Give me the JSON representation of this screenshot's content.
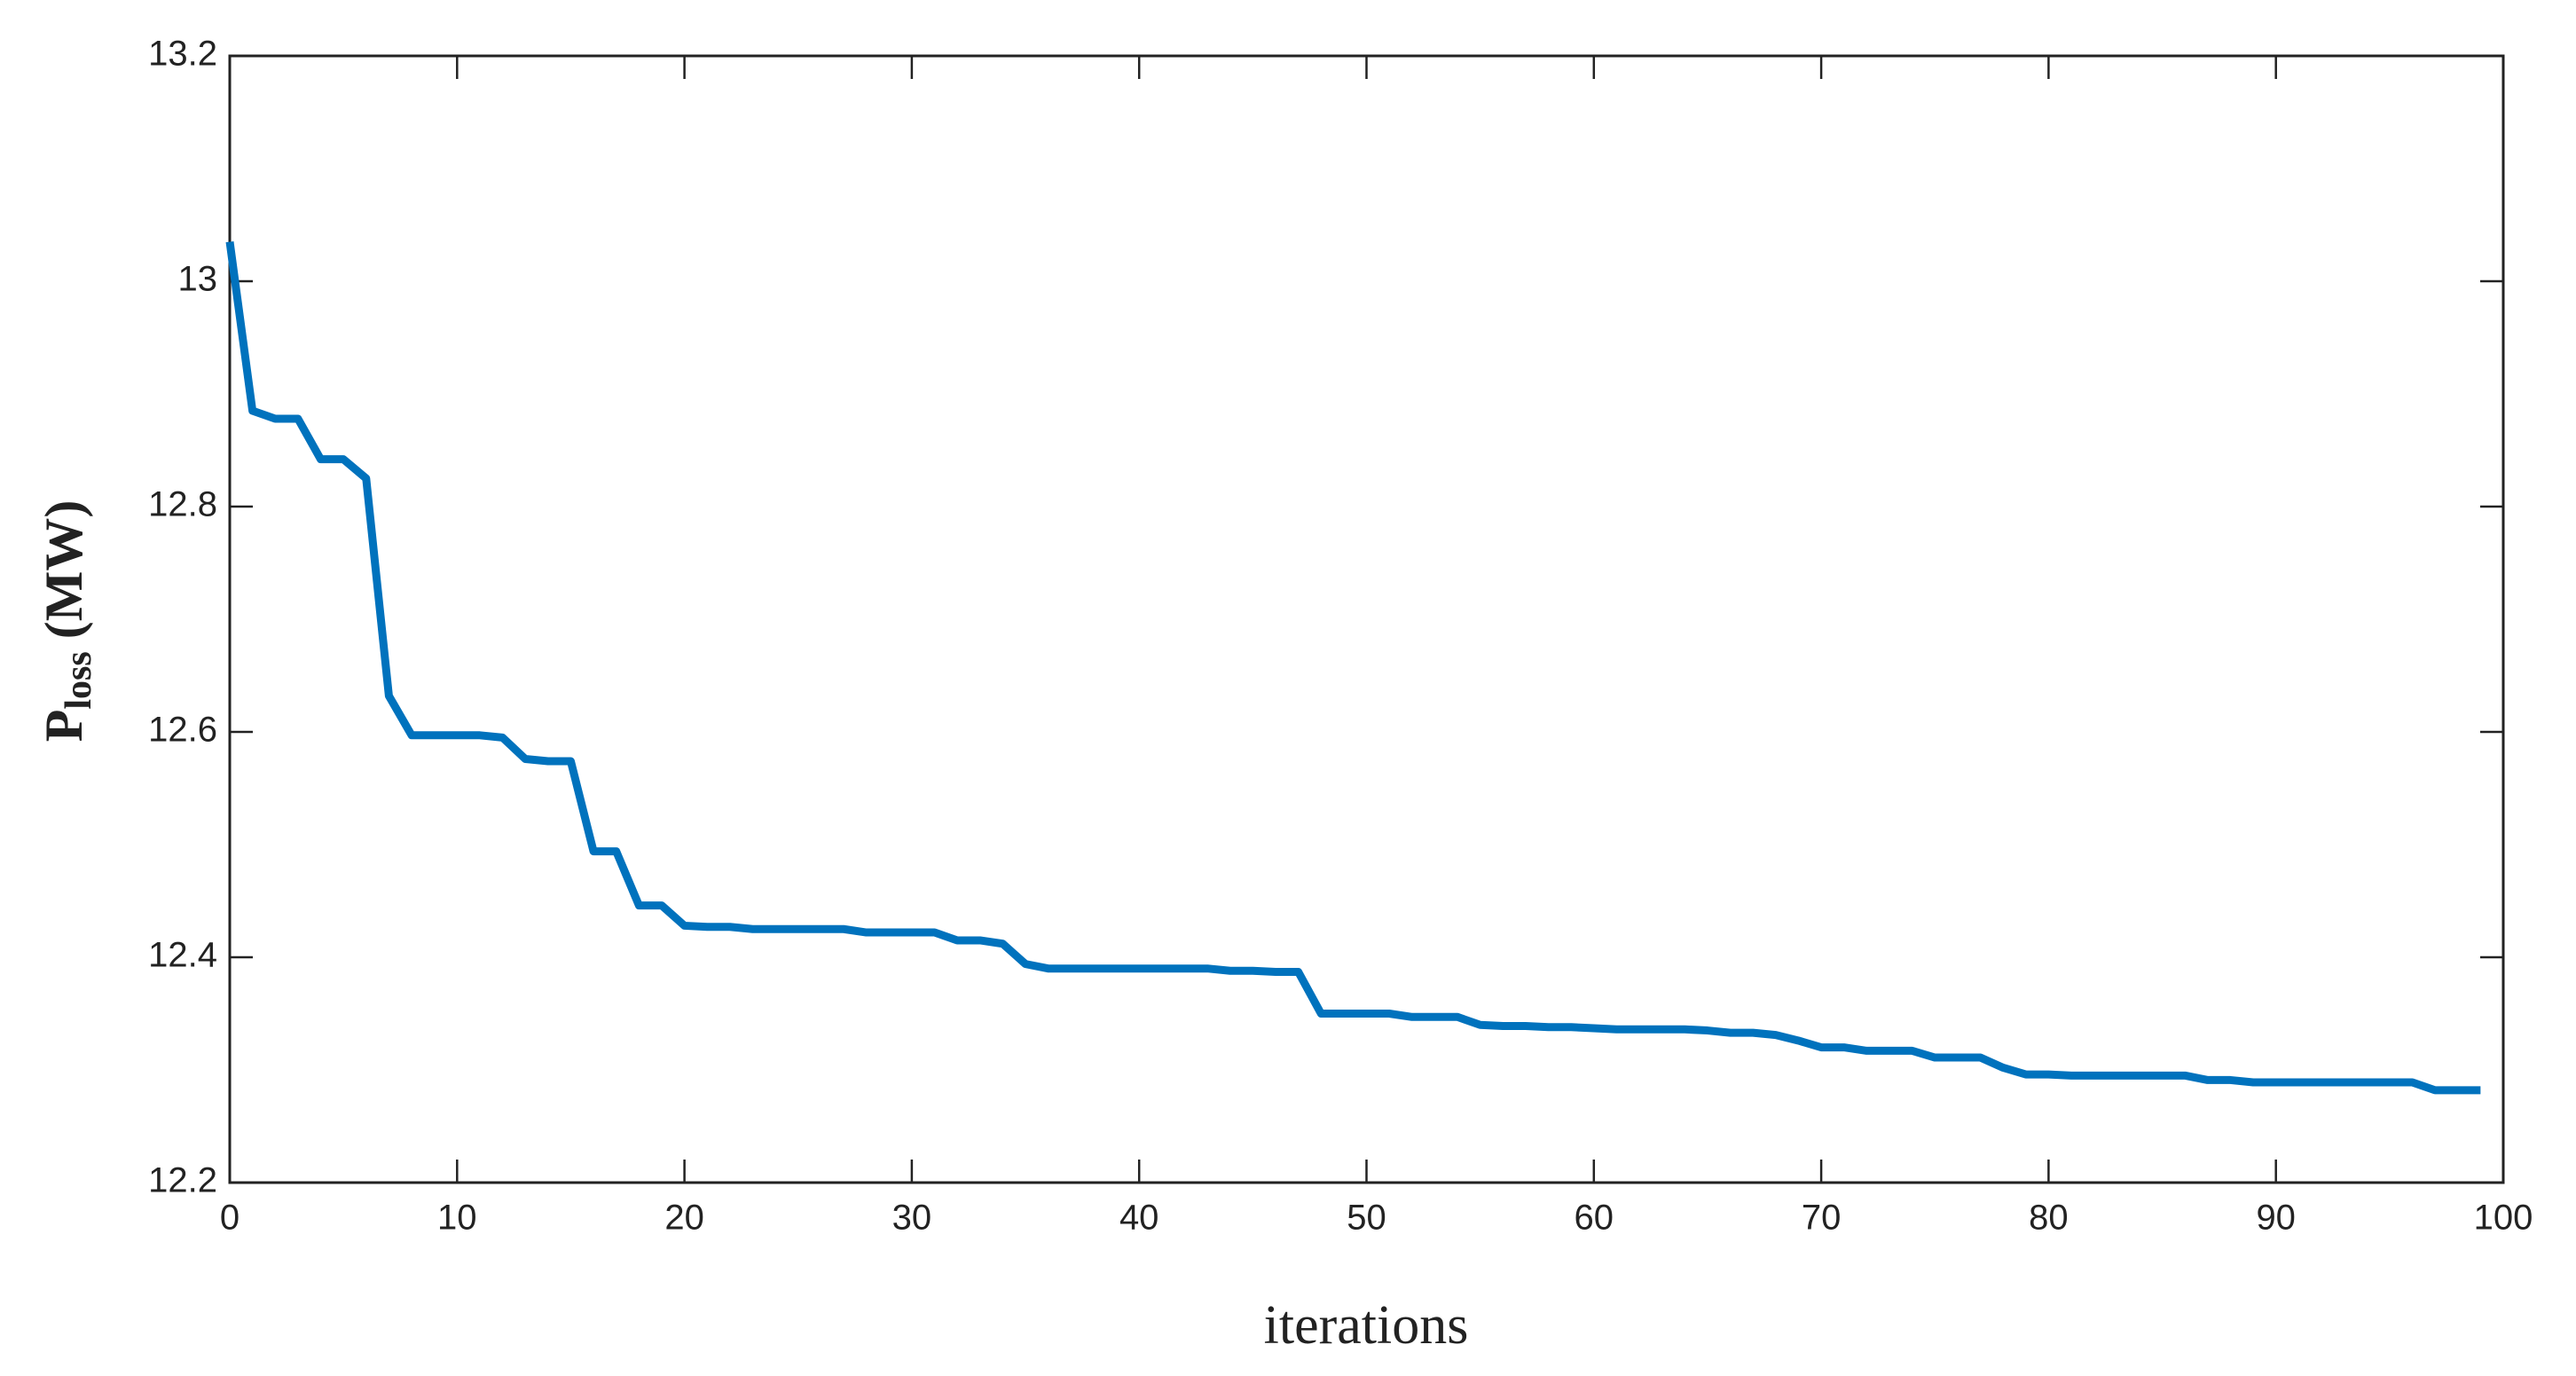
{
  "chart_data": {
    "type": "line",
    "xlabel": "iterations",
    "ylabel": "P",
    "ylabel_subscript": "loss",
    "ylabel_unit": "(MW)",
    "x": [
      0,
      1,
      2,
      3,
      4,
      5,
      6,
      7,
      8,
      9,
      10,
      11,
      12,
      13,
      14,
      15,
      16,
      17,
      18,
      19,
      20,
      21,
      22,
      23,
      24,
      25,
      26,
      27,
      28,
      29,
      30,
      31,
      32,
      33,
      34,
      35,
      36,
      37,
      38,
      39,
      40,
      41,
      42,
      43,
      44,
      45,
      46,
      47,
      48,
      49,
      50,
      51,
      52,
      53,
      54,
      55,
      56,
      57,
      58,
      59,
      60,
      61,
      62,
      63,
      64,
      65,
      66,
      67,
      68,
      69,
      70,
      71,
      72,
      73,
      74,
      75,
      76,
      77,
      78,
      79,
      80,
      81,
      82,
      83,
      84,
      85,
      86,
      87,
      88,
      89,
      90,
      91,
      92,
      93,
      94,
      95,
      96,
      97,
      98,
      99
    ],
    "series": [
      {
        "color": "#0072bd",
        "values": [
          13.035,
          12.885,
          12.878,
          12.878,
          12.842,
          12.842,
          12.825,
          12.632,
          12.597,
          12.597,
          12.597,
          12.597,
          12.595,
          12.576,
          12.574,
          12.574,
          12.494,
          12.494,
          12.446,
          12.446,
          12.428,
          12.427,
          12.427,
          12.425,
          12.425,
          12.425,
          12.425,
          12.425,
          12.422,
          12.422,
          12.422,
          12.422,
          12.415,
          12.415,
          12.412,
          12.394,
          12.39,
          12.39,
          12.39,
          12.39,
          12.39,
          12.39,
          12.39,
          12.39,
          12.388,
          12.388,
          12.387,
          12.387,
          12.35,
          12.35,
          12.35,
          12.35,
          12.347,
          12.347,
          12.347,
          12.34,
          12.339,
          12.339,
          12.338,
          12.338,
          12.337,
          12.336,
          12.336,
          12.336,
          12.336,
          12.335,
          12.333,
          12.333,
          12.331,
          12.326,
          12.32,
          12.32,
          12.317,
          12.317,
          12.317,
          12.311,
          12.311,
          12.311,
          12.302,
          12.296,
          12.296,
          12.295,
          12.295,
          12.295,
          12.295,
          12.295,
          12.295,
          12.291,
          12.291,
          12.289,
          12.289,
          12.289,
          12.289,
          12.289,
          12.289,
          12.289,
          12.289,
          12.282,
          12.282,
          12.282
        ]
      }
    ],
    "xlim": [
      0,
      100
    ],
    "xticks": [
      0,
      10,
      20,
      30,
      40,
      50,
      60,
      70,
      80,
      90,
      100
    ],
    "ylim": [
      12.2,
      13.2
    ],
    "yticks": [
      12.2,
      12.4,
      12.6,
      12.8,
      13,
      13.2
    ],
    "grid": false
  }
}
